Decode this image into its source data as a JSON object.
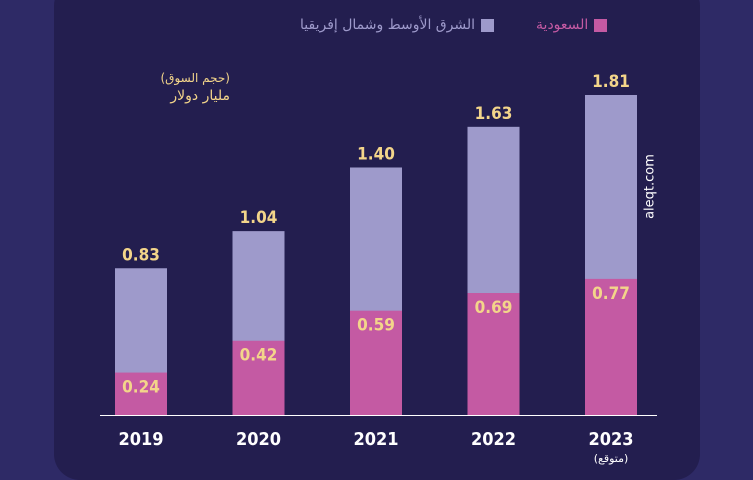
{
  "legend": {
    "saudi": "السعودية",
    "mena": "الشرق الأوسط وشمال إفريقيا"
  },
  "unit_note": {
    "line1": "(حجم السوق)",
    "line2": "مليار دولار"
  },
  "watermark": "aleqt.com",
  "x_note": "(متوقع)",
  "colors": {
    "background": "#2e2a66",
    "panel": "#231e4f",
    "mena": "#9e9acb",
    "saudi": "#c45aa3",
    "value_label": "#f3d58a",
    "axis_label": "#ffffff"
  },
  "chart_data": {
    "type": "bar",
    "stacked": false,
    "overlay": true,
    "categories": [
      "2019",
      "2020",
      "2021",
      "2022",
      "2023"
    ],
    "series": [
      {
        "name": "الشرق الأوسط وشمال إفريقيا",
        "values": [
          0.83,
          1.04,
          1.4,
          1.63,
          1.81
        ],
        "color": "#9e9acb"
      },
      {
        "name": "السعودية",
        "values": [
          0.24,
          0.42,
          0.59,
          0.69,
          0.77
        ],
        "color": "#c45aa3"
      }
    ],
    "value_labels": {
      "mena": [
        "0.83",
        "1.04",
        "1.40",
        "1.63",
        "1.81"
      ],
      "saudi": [
        "0.24",
        "0.42",
        "0.59",
        "0.69",
        "0.77"
      ]
    },
    "title": "",
    "xlabel": "",
    "ylabel": "",
    "ylim": [
      0,
      1.81
    ],
    "grid": false,
    "legend_position": "top"
  }
}
